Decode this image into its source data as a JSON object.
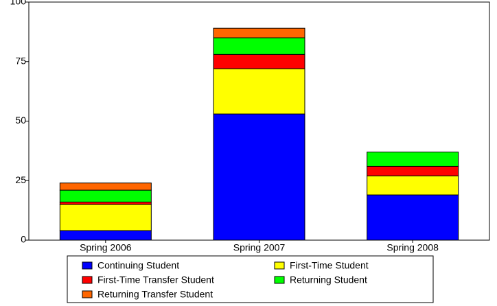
{
  "chart_data": {
    "type": "stacked_bar",
    "categories": [
      "Spring 2006",
      "Spring 2007",
      "Spring 2008"
    ],
    "series": [
      {
        "name": "Continuing Student",
        "color": "#0000ff",
        "values": [
          4,
          53,
          19
        ]
      },
      {
        "name": "First-Time Student",
        "color": "#ffff00",
        "values": [
          11,
          19,
          8
        ]
      },
      {
        "name": "First-Time Transfer Student",
        "color": "#ff0000",
        "values": [
          1,
          6,
          4
        ]
      },
      {
        "name": "Returning Student",
        "color": "#00ff00",
        "values": [
          5,
          7,
          6
        ]
      },
      {
        "name": "Returning Transfer Student",
        "color": "#ff6600",
        "values": [
          3,
          4,
          0
        ]
      }
    ],
    "ylim": [
      0,
      100
    ],
    "yticks": [
      0,
      25,
      50,
      75,
      100
    ]
  }
}
